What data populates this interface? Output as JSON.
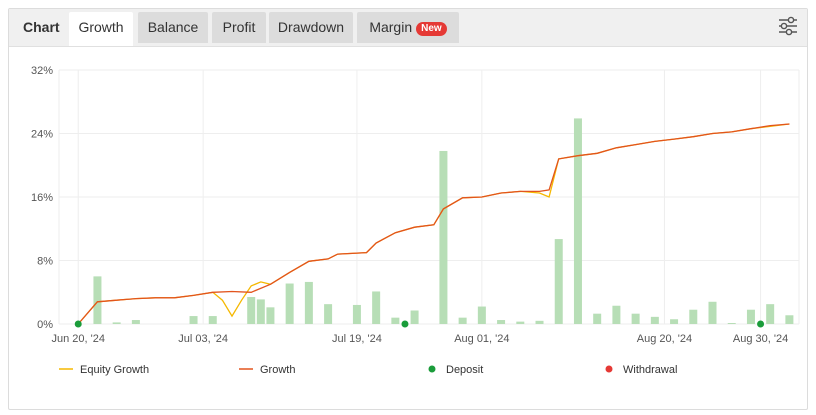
{
  "tabs": {
    "title": "Chart",
    "items": [
      {
        "label": "Growth",
        "active": true
      },
      {
        "label": "Balance",
        "active": false
      },
      {
        "label": "Profit",
        "active": false
      },
      {
        "label": "Drawdown",
        "active": false
      },
      {
        "label": "Margin",
        "active": false,
        "badge": "New"
      }
    ]
  },
  "settings_icon": "sliders-icon",
  "colors": {
    "equity": "#f5b800",
    "growth": "#e2541d",
    "bars": "#b7deb6",
    "deposit": "#1a9c3a",
    "withdrawal": "#e53935",
    "grid": "#eeeeee"
  },
  "chart_data": {
    "type": "line",
    "ylim": [
      0,
      32
    ],
    "y_ticks": [
      "0%",
      "8%",
      "16%",
      "24%",
      "32%"
    ],
    "y_tick_values": [
      0,
      8,
      16,
      24,
      32
    ],
    "x_ticks": [
      {
        "label": "Jun 20, '24",
        "day": 0
      },
      {
        "label": "Jul 03, '24",
        "day": 13
      },
      {
        "label": "Jul 19, '24",
        "day": 29
      },
      {
        "label": "Aug 01, '24",
        "day": 42
      },
      {
        "label": "Aug 20, '24",
        "day": 61
      },
      {
        "label": "Aug 30, '24",
        "day": 71
      }
    ],
    "xlim": [
      -2,
      75
    ],
    "growth": [
      [
        0,
        0
      ],
      [
        2,
        2.8
      ],
      [
        4,
        3.0
      ],
      [
        6,
        3.2
      ],
      [
        8,
        3.3
      ],
      [
        10,
        3.3
      ],
      [
        12,
        3.6
      ],
      [
        14,
        4.0
      ],
      [
        16,
        4.1
      ],
      [
        18,
        4.0
      ],
      [
        20,
        5.0
      ],
      [
        22,
        6.5
      ],
      [
        24,
        7.9
      ],
      [
        26,
        8.2
      ],
      [
        27,
        8.8
      ],
      [
        30,
        9.0
      ],
      [
        31,
        10.2
      ],
      [
        33,
        11.5
      ],
      [
        35,
        12.2
      ],
      [
        37,
        12.5
      ],
      [
        38,
        14.5
      ],
      [
        40,
        15.9
      ],
      [
        42,
        16.0
      ],
      [
        44,
        16.5
      ],
      [
        46,
        16.7
      ],
      [
        48,
        16.7
      ],
      [
        49,
        16.9
      ],
      [
        50,
        20.8
      ],
      [
        52,
        21.2
      ],
      [
        54,
        21.5
      ],
      [
        56,
        22.2
      ],
      [
        58,
        22.6
      ],
      [
        60,
        23.0
      ],
      [
        62,
        23.3
      ],
      [
        64,
        23.6
      ],
      [
        66,
        24.0
      ],
      [
        68,
        24.2
      ],
      [
        70,
        24.6
      ],
      [
        72,
        25.0
      ],
      [
        74,
        25.2
      ]
    ],
    "equity": [
      [
        0,
        0
      ],
      [
        2,
        2.8
      ],
      [
        4,
        3.0
      ],
      [
        6,
        3.2
      ],
      [
        8,
        3.3
      ],
      [
        10,
        3.3
      ],
      [
        12,
        3.6
      ],
      [
        14,
        4.0
      ],
      [
        15,
        3.0
      ],
      [
        16,
        1.0
      ],
      [
        17,
        3.0
      ],
      [
        18,
        4.8
      ],
      [
        19,
        5.3
      ],
      [
        20,
        5.0
      ],
      [
        22,
        6.5
      ],
      [
        24,
        7.9
      ],
      [
        26,
        8.2
      ],
      [
        27,
        8.8
      ],
      [
        30,
        9.0
      ],
      [
        31,
        10.2
      ],
      [
        33,
        11.5
      ],
      [
        35,
        12.2
      ],
      [
        37,
        12.5
      ],
      [
        38,
        14.5
      ],
      [
        40,
        15.9
      ],
      [
        42,
        16.0
      ],
      [
        44,
        16.5
      ],
      [
        46,
        16.7
      ],
      [
        48,
        16.5
      ],
      [
        49,
        16.0
      ],
      [
        50,
        20.8
      ],
      [
        52,
        21.2
      ],
      [
        54,
        21.5
      ],
      [
        56,
        22.2
      ],
      [
        58,
        22.6
      ],
      [
        60,
        23.0
      ],
      [
        62,
        23.3
      ],
      [
        64,
        23.6
      ],
      [
        66,
        24.0
      ],
      [
        68,
        24.2
      ],
      [
        70,
        24.6
      ],
      [
        72,
        24.9
      ],
      [
        74,
        25.2
      ]
    ],
    "bars": [
      [
        2,
        6.0
      ],
      [
        4,
        0.2
      ],
      [
        6,
        0.5
      ],
      [
        12,
        1.0
      ],
      [
        14,
        1.0
      ],
      [
        18,
        3.4
      ],
      [
        19,
        3.1
      ],
      [
        20,
        2.1
      ],
      [
        22,
        5.1
      ],
      [
        24,
        5.3
      ],
      [
        26,
        2.5
      ],
      [
        29,
        2.4
      ],
      [
        31,
        4.1
      ],
      [
        33,
        0.8
      ],
      [
        35,
        1.7
      ],
      [
        38,
        21.8
      ],
      [
        40,
        0.8
      ],
      [
        42,
        2.2
      ],
      [
        44,
        0.5
      ],
      [
        46,
        0.3
      ],
      [
        48,
        0.4
      ],
      [
        50,
        10.7
      ],
      [
        52,
        25.9
      ],
      [
        54,
        1.3
      ],
      [
        56,
        2.3
      ],
      [
        58,
        1.3
      ],
      [
        60,
        0.9
      ],
      [
        62,
        0.6
      ],
      [
        64,
        1.8
      ],
      [
        66,
        2.8
      ],
      [
        68,
        0.1
      ],
      [
        70,
        1.8
      ],
      [
        72,
        2.5
      ],
      [
        74,
        1.1
      ]
    ],
    "deposits": [
      [
        0,
        0
      ],
      [
        34,
        0
      ],
      [
        71,
        0
      ]
    ],
    "legend": [
      {
        "label": "Equity Growth",
        "kind": "line",
        "color_key": "equity"
      },
      {
        "label": "Growth",
        "kind": "line",
        "color_key": "growth"
      },
      {
        "label": "Deposit",
        "kind": "dot",
        "color_key": "deposit"
      },
      {
        "label": "Withdrawal",
        "kind": "dot",
        "color_key": "withdrawal"
      }
    ]
  }
}
